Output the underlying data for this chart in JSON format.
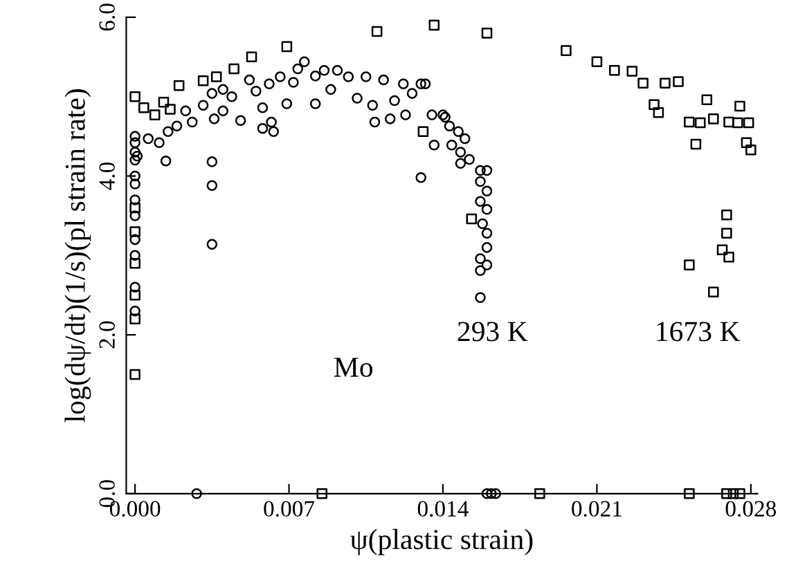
{
  "chart_data": {
    "type": "scatter",
    "xlabel": "ψ(plastic strain)",
    "ylabel": "log(dψ/dt)(1/s)(pl strain rate)",
    "xlim": [
      -0.0004,
      0.0283
    ],
    "ylim": [
      0,
      6.0
    ],
    "xticks": [
      {
        "value": 0,
        "label": "0.000"
      },
      {
        "value": 0.007,
        "label": "0.007"
      },
      {
        "value": 0.014,
        "label": "0.014"
      },
      {
        "value": 0.021,
        "label": "0.021"
      },
      {
        "value": 0.028,
        "label": "0.028"
      }
    ],
    "yticks": [
      {
        "value": 0,
        "label": "0.0"
      },
      {
        "value": 2,
        "label": "2.0"
      },
      {
        "value": 4,
        "label": "4.0"
      },
      {
        "value": 6,
        "label": "6.0"
      }
    ],
    "grid": false,
    "legend": false,
    "annotations": [
      "293 K",
      "1673 K",
      "Mo"
    ],
    "series": [
      {
        "color": "#000000",
        "marker": "circle",
        "x": [
          0,
          0,
          0,
          0,
          0,
          0,
          0,
          0,
          0,
          0,
          0,
          0,
          0.0001,
          0.0006,
          0.0011,
          0.0014,
          0.0015,
          0.0019,
          0.0023,
          0.0026,
          0.0031,
          0.0035,
          0.0036,
          0.0035,
          0.0035,
          0.0035,
          0.004,
          0.004,
          0.0044,
          0.0048,
          0.0052,
          0.0055,
          0.0058,
          0.0058,
          0.0063,
          0.0062,
          0.0061,
          0.0066,
          0.0069,
          0.0072,
          0.0074,
          0.0077,
          0.0082,
          0.0082,
          0.0086,
          0.0089,
          0.0092,
          0.0097,
          0.0101,
          0.0105,
          0.0108,
          0.0109,
          0.0113,
          0.0116,
          0.0118,
          0.0122,
          0.0123,
          0.0126,
          0.013,
          0.013,
          0.0132,
          0.0135,
          0.0136,
          0.014,
          0.0141,
          0.0143,
          0.0144,
          0.0147,
          0.015,
          0.0148,
          0.0148,
          0.0152,
          0.0157,
          0.016,
          0.0157,
          0.016,
          0.0157,
          0.016,
          0.0158,
          0.016,
          0.016,
          0.0157,
          0.016,
          0.0157,
          0.0157,
          0.0028,
          0.016,
          0.0162,
          0.0164
        ],
        "values": [
          2.3,
          2.6,
          3.0,
          3.2,
          3.5,
          3.7,
          3.9,
          4.0,
          4.2,
          4.3,
          4.42,
          4.5,
          4.25,
          4.47,
          4.42,
          4.19,
          4.56,
          4.63,
          4.82,
          4.68,
          4.89,
          5.04,
          4.72,
          4.18,
          3.88,
          3.14,
          5.09,
          4.82,
          5.0,
          4.7,
          5.21,
          5.07,
          4.86,
          4.6,
          4.56,
          4.68,
          5.16,
          5.25,
          4.91,
          5.18,
          5.35,
          5.44,
          5.26,
          4.91,
          5.33,
          5.09,
          5.33,
          5.25,
          4.98,
          5.25,
          4.89,
          4.68,
          5.21,
          4.72,
          4.95,
          5.16,
          4.77,
          5.04,
          5.16,
          3.98,
          5.16,
          4.77,
          4.39,
          4.77,
          4.74,
          4.63,
          4.39,
          4.56,
          4.47,
          4.3,
          4.16,
          4.21,
          4.07,
          4.07,
          3.93,
          3.81,
          3.68,
          3.58,
          3.4,
          3.28,
          3.1,
          2.96,
          2.88,
          2.81,
          2.47,
          0,
          0,
          0,
          0
        ]
      },
      {
        "color": "#000000",
        "marker": "square",
        "x": [
          0,
          0,
          0,
          0,
          0,
          0,
          0,
          0.0004,
          0.0009,
          0.0013,
          0.0016,
          0.002,
          0.0031,
          0.0037,
          0.0045,
          0.0053,
          0.0069,
          0.011,
          0.0136,
          0.0131,
          0.0153,
          0.016,
          0.0196,
          0.021,
          0.0218,
          0.0226,
          0.0231,
          0.0241,
          0.0247,
          0.0236,
          0.0238,
          0.026,
          0.0252,
          0.0257,
          0.0263,
          0.027,
          0.0275,
          0.0274,
          0.0279,
          0.0255,
          0.0278,
          0.028,
          0.0269,
          0.0269,
          0.0267,
          0.027,
          0.0252,
          0.0263,
          0.0085,
          0.0184,
          0.0252,
          0.0269,
          0.0272,
          0.0275
        ],
        "values": [
          1.5,
          2.2,
          2.5,
          2.9,
          3.3,
          3.6,
          5.0,
          4.86,
          4.77,
          4.93,
          4.84,
          5.14,
          5.2,
          5.25,
          5.35,
          5.5,
          5.63,
          5.82,
          5.9,
          4.56,
          3.46,
          5.8,
          5.58,
          5.44,
          5.33,
          5.32,
          5.17,
          5.17,
          5.19,
          4.9,
          4.8,
          4.96,
          4.68,
          4.67,
          4.72,
          4.68,
          4.88,
          4.67,
          4.67,
          4.4,
          4.42,
          4.33,
          3.51,
          3.28,
          3.07,
          2.98,
          2.88,
          2.54,
          0,
          0,
          0,
          0,
          0,
          0
        ]
      }
    ]
  }
}
